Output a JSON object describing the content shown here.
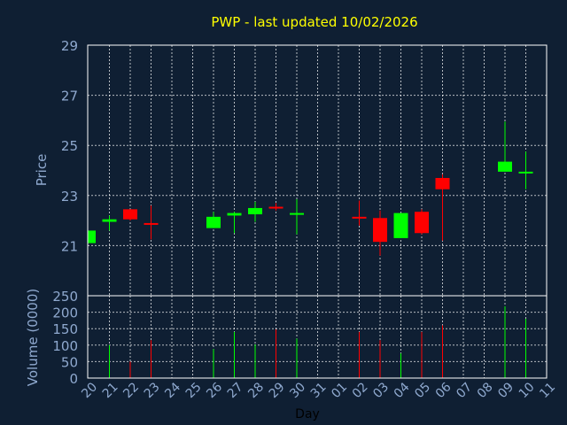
{
  "colors": {
    "background": "#0f1f33",
    "plot_background": "#0f1f33",
    "frame": "#ffffff",
    "grid": "#ffffff",
    "title": "#ffff00",
    "ticks": "#8fa9cf",
    "up": "#00ff00",
    "down": "#ff0000"
  },
  "chart_data": {
    "type": "candlestick",
    "title": "PWP - last updated 10/02/2026",
    "xlabel": "Day",
    "price_panel": {
      "ylabel": "Price",
      "ylim": [
        19.0,
        29.0
      ],
      "yticks": [
        21,
        23,
        25,
        27,
        29
      ],
      "grid": true
    },
    "volume_panel": {
      "ylabel": "Volume (0000)",
      "ylim": [
        0,
        250
      ],
      "yticks": [
        0,
        50,
        100,
        150,
        200,
        250
      ],
      "grid": true
    },
    "x_tick_labels": [
      "20",
      "21",
      "22",
      "23",
      "24",
      "25",
      "26",
      "27",
      "28",
      "29",
      "30",
      "31",
      "01",
      "02",
      "03",
      "04",
      "05",
      "06",
      "07",
      "08",
      "09",
      "10",
      "11"
    ],
    "candles": [
      {
        "slot": 0,
        "open": 21.1,
        "high": 21.6,
        "low": 21.1,
        "close": 21.6,
        "volume": 0
      },
      {
        "slot": 1,
        "open": 21.95,
        "high": 22.2,
        "low": 21.6,
        "close": 22.05,
        "volume": 100
      },
      {
        "slot": 2,
        "open": 22.45,
        "high": 22.45,
        "low": 22.0,
        "close": 22.05,
        "volume": 50
      },
      {
        "slot": 3,
        "open": 21.9,
        "high": 22.6,
        "low": 21.25,
        "close": 21.85,
        "volume": 115
      },
      {
        "slot": 6,
        "open": 21.7,
        "high": 22.35,
        "low": 21.7,
        "close": 22.15,
        "volume": 88
      },
      {
        "slot": 7,
        "open": 22.2,
        "high": 22.35,
        "low": 21.5,
        "close": 22.3,
        "volume": 140
      },
      {
        "slot": 8,
        "open": 22.25,
        "high": 22.75,
        "low": 21.95,
        "close": 22.5,
        "volume": 102
      },
      {
        "slot": 9,
        "open": 22.55,
        "high": 22.7,
        "low": 22.4,
        "close": 22.5,
        "volume": 148
      },
      {
        "slot": 10,
        "open": 22.25,
        "high": 22.85,
        "low": 21.45,
        "close": 22.3,
        "volume": 120
      },
      {
        "slot": 13,
        "open": 22.15,
        "high": 22.8,
        "low": 21.8,
        "close": 22.1,
        "volume": 140
      },
      {
        "slot": 14,
        "open": 22.1,
        "high": 22.4,
        "low": 20.6,
        "close": 21.15,
        "volume": 115
      },
      {
        "slot": 15,
        "open": 21.3,
        "high": 22.3,
        "low": 21.3,
        "close": 22.3,
        "volume": 75
      },
      {
        "slot": 16,
        "open": 22.35,
        "high": 22.45,
        "low": 21.45,
        "close": 21.5,
        "volume": 140
      },
      {
        "slot": 17,
        "open": 23.7,
        "high": 23.85,
        "low": 21.2,
        "close": 23.25,
        "volume": 160
      },
      {
        "slot": 20,
        "open": 23.95,
        "high": 25.95,
        "low": 23.95,
        "close": 24.35,
        "volume": 218
      },
      {
        "slot": 21,
        "open": 23.95,
        "high": 24.75,
        "low": 23.25,
        "close": 23.95,
        "volume": 180
      }
    ]
  }
}
